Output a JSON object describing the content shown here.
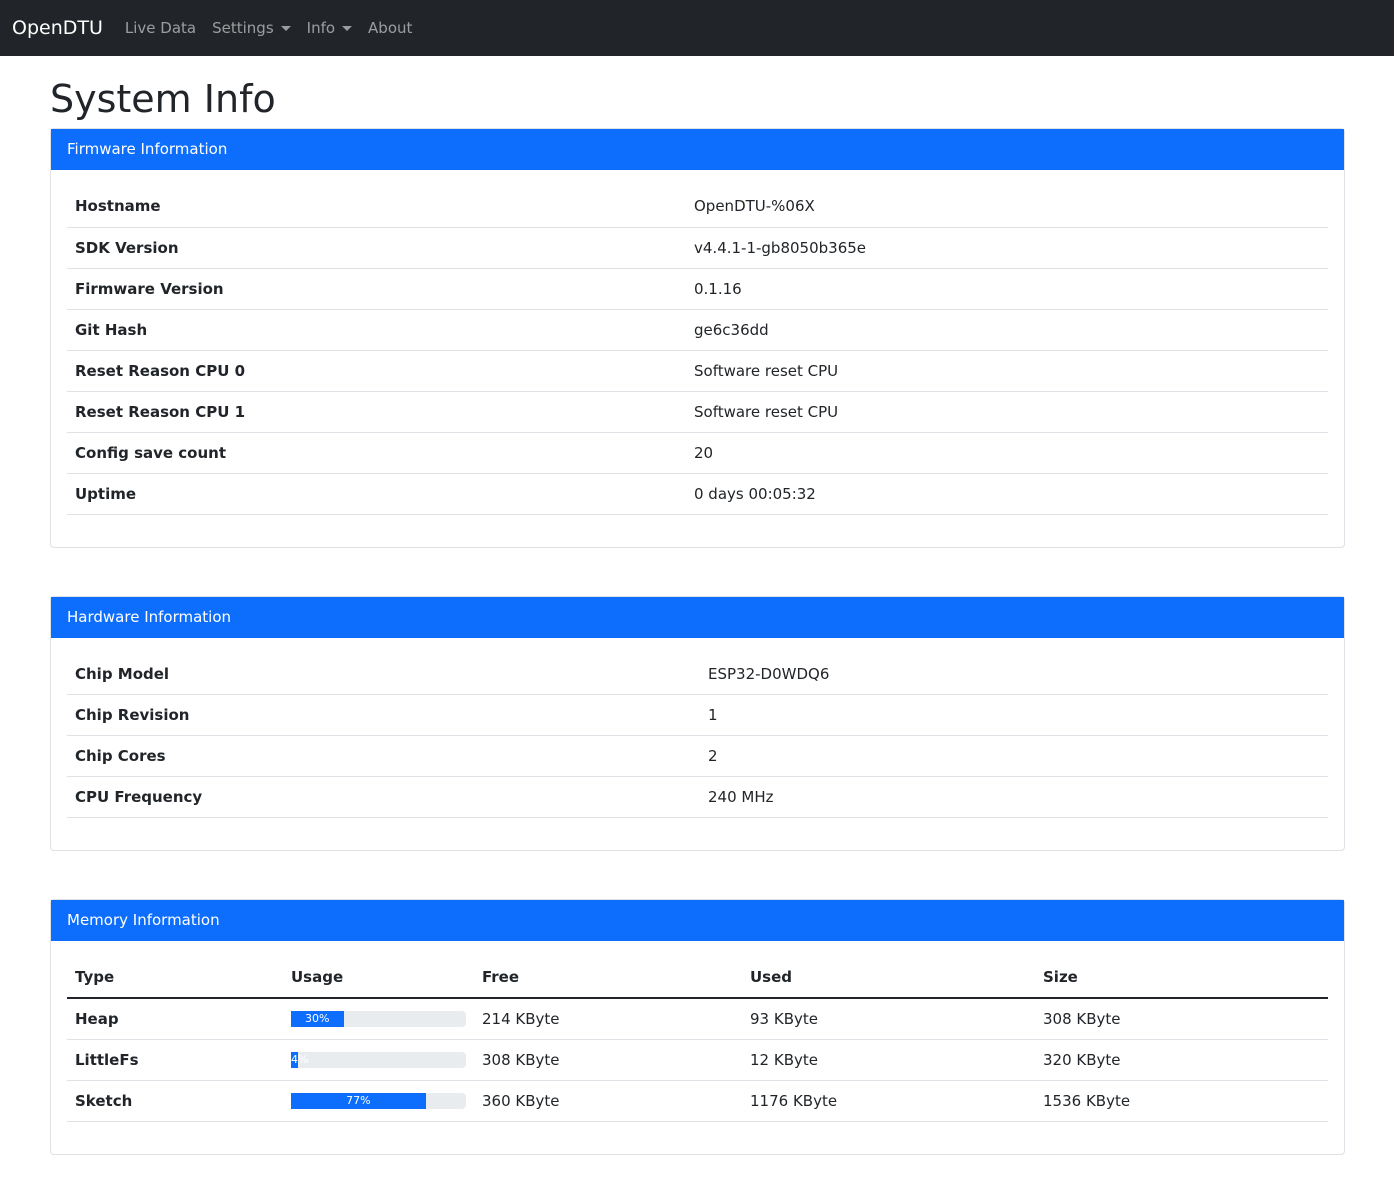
{
  "nav": {
    "brand": "OpenDTU",
    "items": [
      "Live Data",
      "Settings",
      "Info",
      "About"
    ]
  },
  "page_title": "System Info",
  "firmware": {
    "title": "Firmware Information",
    "rows": [
      [
        "Hostname",
        "OpenDTU-%06X"
      ],
      [
        "SDK Version",
        "v4.4.1-1-gb8050b365e"
      ],
      [
        "Firmware Version",
        "0.1.16"
      ],
      [
        "Git Hash",
        "ge6c36dd"
      ],
      [
        "Reset Reason CPU 0",
        "Software reset CPU"
      ],
      [
        "Reset Reason CPU 1",
        "Software reset CPU"
      ],
      [
        "Config save count",
        "20"
      ],
      [
        "Uptime",
        "0 days 00:05:32"
      ]
    ]
  },
  "hardware": {
    "title": "Hardware Information",
    "rows": [
      [
        "Chip Model",
        "ESP32-D0WDQ6"
      ],
      [
        "Chip Revision",
        "1"
      ],
      [
        "Chip Cores",
        "2"
      ],
      [
        "CPU Frequency",
        "240 MHz"
      ]
    ]
  },
  "memory": {
    "title": "Memory Information",
    "headers": [
      "Type",
      "Usage",
      "Free",
      "Used",
      "Size"
    ],
    "rows": [
      {
        "type": "Heap",
        "usage": 30,
        "usage_label": "30%",
        "free": "214 KByte",
        "used": "93 KByte",
        "size": "308 KByte"
      },
      {
        "type": "LittleFs",
        "usage": 4,
        "usage_label": "4%",
        "free": "308 KByte",
        "used": "12 KByte",
        "size": "320 KByte"
      },
      {
        "type": "Sketch",
        "usage": 77,
        "usage_label": "77%",
        "free": "360 KByte",
        "used": "1176 KByte",
        "size": "1536 KByte"
      }
    ]
  }
}
